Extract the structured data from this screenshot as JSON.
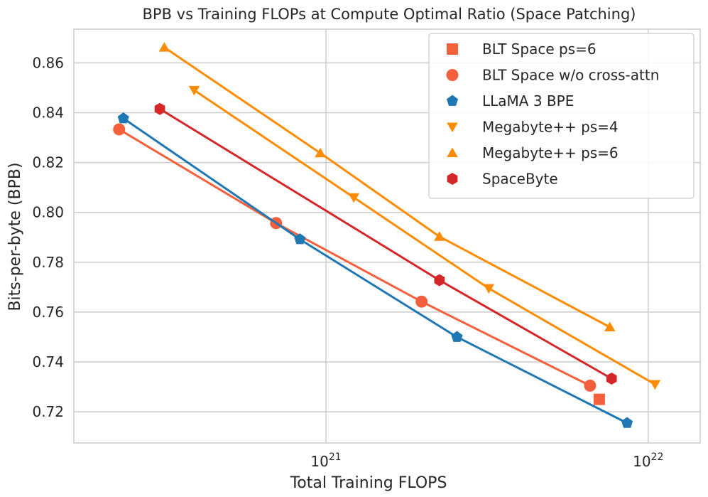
{
  "chart_data": {
    "type": "line",
    "title": "BPB vs Training FLOPs at Compute Optimal Ratio (Space Patching)",
    "xlabel": "Total Training FLOPS",
    "ylabel": "Bits-per-byte (BPB)",
    "x_scale": "log",
    "xlim": [
      1.65e+20,
      1.45e+22
    ],
    "ylim": [
      0.7075,
      0.8735
    ],
    "x_ticks": [
      {
        "value": 1e+21,
        "base": "10",
        "exp": "21"
      },
      {
        "value": 1e+22,
        "base": "10",
        "exp": "22"
      }
    ],
    "y_ticks": [
      {
        "value": 0.72,
        "label": "0.72"
      },
      {
        "value": 0.74,
        "label": "0.74"
      },
      {
        "value": 0.76,
        "label": "0.76"
      },
      {
        "value": 0.78,
        "label": "0.78"
      },
      {
        "value": 0.8,
        "label": "0.80"
      },
      {
        "value": 0.82,
        "label": "0.82"
      },
      {
        "value": 0.84,
        "label": "0.84"
      },
      {
        "value": 0.86,
        "label": "0.86"
      }
    ],
    "grid": true,
    "legend_position": "top-right",
    "series": [
      {
        "name": "BLT Space ps=6",
        "color": "#f4603b",
        "marker": "square",
        "line": false,
        "points": [
          [
            7.05e+21,
            0.725
          ]
        ]
      },
      {
        "name": "BLT Space w/o cross-attn",
        "color": "#f4603b",
        "marker": "circle",
        "line": true,
        "points": [
          [
            2.28e+20,
            0.8333
          ],
          [
            7e+20,
            0.7957
          ],
          [
            1.98e+21,
            0.7642
          ],
          [
            6.6e+21,
            0.7305
          ]
        ]
      },
      {
        "name": "LLaMA 3 BPE",
        "color": "#1f77b4",
        "marker": "pentagon",
        "line": true,
        "points": [
          [
            2.35e+20,
            0.8377
          ],
          [
            8.3e+20,
            0.7892
          ],
          [
            2.55e+21,
            0.75
          ],
          [
            8.6e+21,
            0.7155
          ]
        ]
      },
      {
        "name": "Megabyte++ ps=4",
        "color": "#ff8c00",
        "marker": "triangle-down",
        "line": true,
        "points": [
          [
            3.9e+20,
            0.849
          ],
          [
            1.22e+21,
            0.806
          ],
          [
            3.2e+21,
            0.7695
          ],
          [
            1.05e+22,
            0.731
          ]
        ]
      },
      {
        "name": "Megabyte++ ps=6",
        "color": "#ff8c00",
        "marker": "triangle-up",
        "line": true,
        "points": [
          [
            3.15e+20,
            0.8662
          ],
          [
            9.6e+20,
            0.8238
          ],
          [
            2.25e+21,
            0.7903
          ],
          [
            7.6e+21,
            0.754
          ]
        ]
      },
      {
        "name": "SpaceByte",
        "color": "#d62728",
        "marker": "hexagon",
        "line": true,
        "points": [
          [
            3.05e+20,
            0.8415
          ],
          [
            2.25e+21,
            0.7728
          ],
          [
            7.7e+21,
            0.7333
          ]
        ]
      }
    ]
  }
}
